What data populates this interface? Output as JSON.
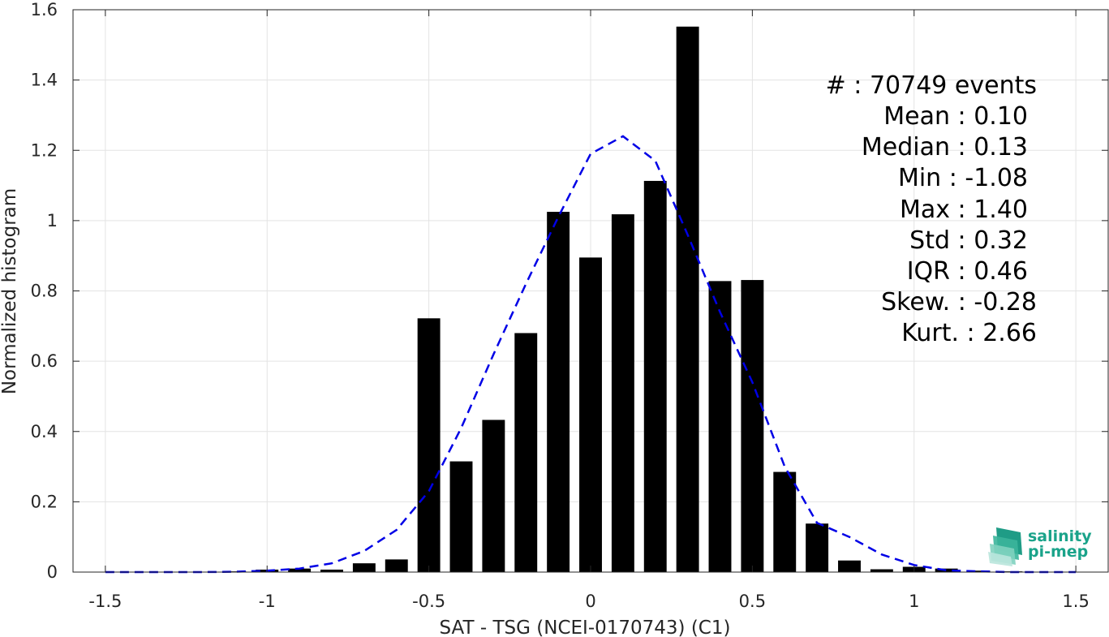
{
  "chart_data": {
    "type": "bar",
    "title": "",
    "xlabel": "SAT - TSG (NCEI-0170743) (C1)",
    "ylabel": "Normalized histogram",
    "xlim": [
      -1.6,
      1.6
    ],
    "ylim": [
      0,
      1.6
    ],
    "xticks": [
      -1.5,
      -1,
      -0.5,
      0,
      0.5,
      1,
      1.5
    ],
    "xtick_labels": [
      "-1.5",
      "-1",
      "-0.5",
      "0",
      "0.5",
      "1",
      "1.5"
    ],
    "yticks": [
      0,
      0.2,
      0.4,
      0.6,
      0.8,
      1,
      1.2,
      1.4,
      1.6
    ],
    "ytick_labels": [
      "0",
      "0.2",
      "0.4",
      "0.6",
      "0.8",
      "1",
      "1.2",
      "1.4",
      "1.6"
    ],
    "grid": true,
    "bars": {
      "name": "Histogram",
      "color": "#000000",
      "width": 0.07,
      "x": [
        -1.5,
        -1.4,
        -1.3,
        -1.2,
        -1.1,
        -1.0,
        -0.9,
        -0.8,
        -0.7,
        -0.6,
        -0.5,
        -0.4,
        -0.3,
        -0.2,
        -0.1,
        0.0,
        0.1,
        0.2,
        0.3,
        0.4,
        0.5,
        0.6,
        0.7,
        0.8,
        0.9,
        1.0,
        1.1,
        1.2,
        1.3,
        1.4,
        1.5
      ],
      "values": [
        0,
        0,
        0,
        0,
        0.002,
        0.007,
        0.01,
        0.007,
        0.025,
        0.036,
        0.722,
        0.315,
        0.433,
        0.68,
        1.025,
        0.895,
        1.018,
        1.113,
        1.552,
        0.828,
        0.831,
        0.285,
        0.138,
        0.033,
        0.008,
        0.015,
        0.01,
        0.004,
        0.002,
        0.001,
        0
      ]
    },
    "fit": {
      "name": "Gaussian fit",
      "color": "#0000e6",
      "style": "dashed",
      "x": [
        -1.5,
        -1.4,
        -1.3,
        -1.2,
        -1.1,
        -1.0,
        -0.9,
        -0.8,
        -0.7,
        -0.6,
        -0.5,
        -0.4,
        -0.3,
        -0.2,
        -0.1,
        0.0,
        0.1,
        0.2,
        0.3,
        0.4,
        0.5,
        0.6,
        0.7,
        0.8,
        0.9,
        1.0,
        1.1,
        1.2,
        1.3,
        1.4,
        1.5
      ],
      "values": [
        0,
        0,
        0,
        0,
        0.001,
        0.004,
        0.01,
        0.025,
        0.06,
        0.12,
        0.23,
        0.41,
        0.62,
        0.82,
        1.01,
        1.19,
        1.24,
        1.17,
        0.96,
        0.74,
        0.54,
        0.3,
        0.14,
        0.1,
        0.05,
        0.02,
        0.005,
        0.002,
        0,
        0,
        0
      ]
    },
    "stats": [
      {
        "label": "#  : 70749 events"
      },
      {
        "label": "Mean : 0.10"
      },
      {
        "label": "Median : 0.13"
      },
      {
        "label": "Min : -1.08"
      },
      {
        "label": "Max : 1.40"
      },
      {
        "label": "Std : 0.32"
      },
      {
        "label": "IQR : 0.46"
      },
      {
        "label": "Skew. : -0.28"
      },
      {
        "label": "Kurt. : 2.66"
      }
    ]
  },
  "logo": {
    "line1": "salinity",
    "line2": "pi-mep"
  }
}
